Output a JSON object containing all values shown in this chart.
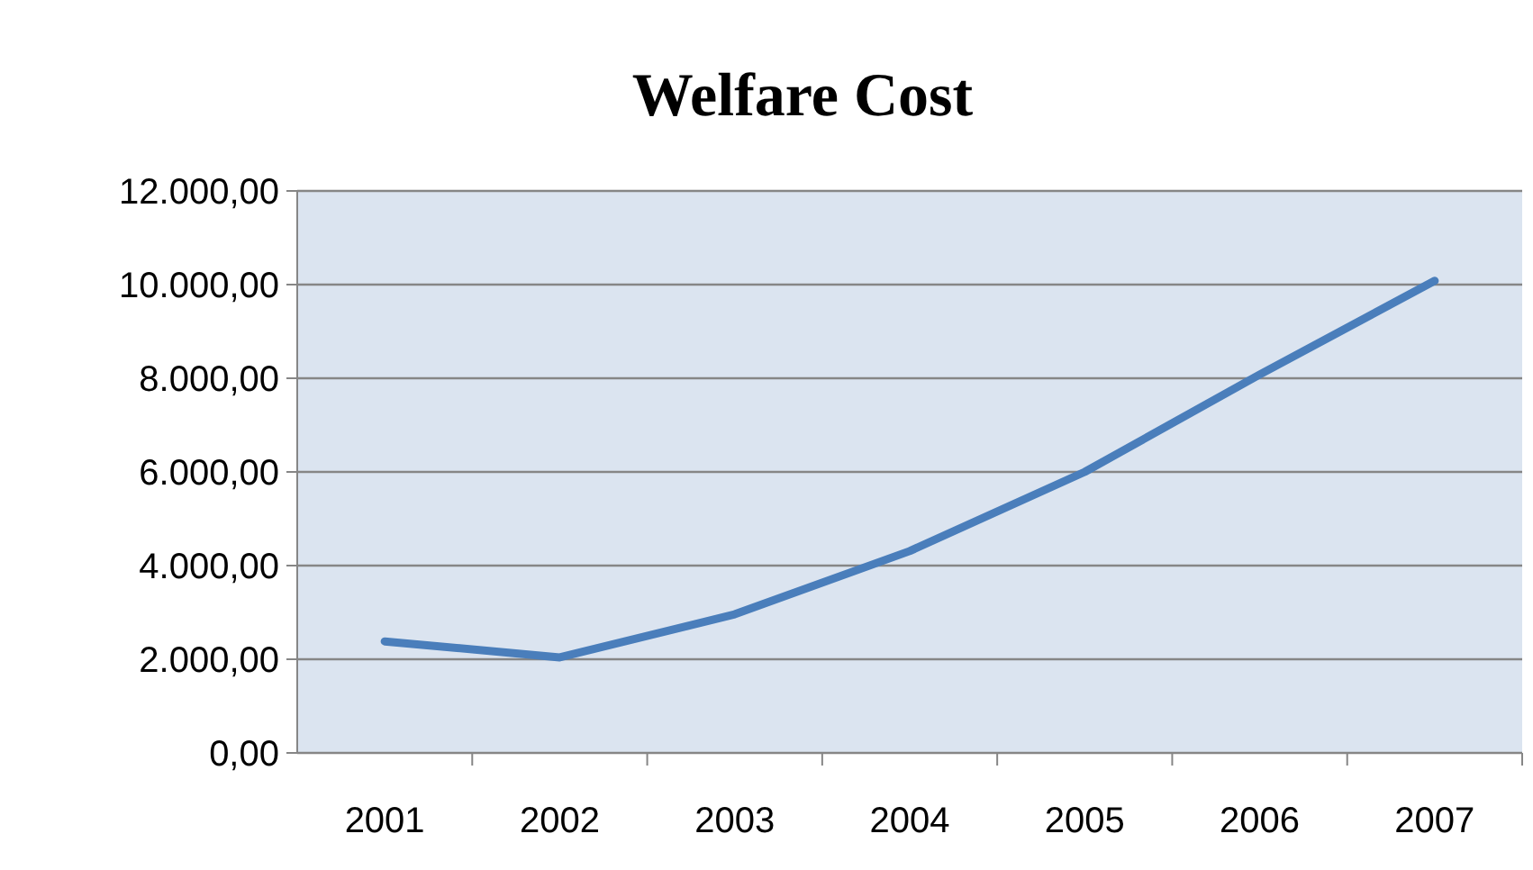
{
  "chart_data": {
    "type": "line",
    "title": "Welfare Cost",
    "categories": [
      "2001",
      "2002",
      "2003",
      "2004",
      "2005",
      "2006",
      "2007"
    ],
    "series": [
      {
        "color": "#4a7ebb",
        "values": [
          2380,
          2040,
          2960,
          4310,
          6000,
          8080,
          10080
        ]
      }
    ],
    "ylim": [
      0,
      12000
    ],
    "yticks": [
      {
        "value": 0,
        "label": "0,00"
      },
      {
        "value": 2000,
        "label": "2.000,00"
      },
      {
        "value": 4000,
        "label": "4.000,00"
      },
      {
        "value": 6000,
        "label": "6.000,00"
      },
      {
        "value": 8000,
        "label": "8.000,00"
      },
      {
        "value": 10000,
        "label": "10.000,00"
      },
      {
        "value": 12000,
        "label": "12.000,00"
      }
    ],
    "grid": "y",
    "line_style": "solid"
  }
}
